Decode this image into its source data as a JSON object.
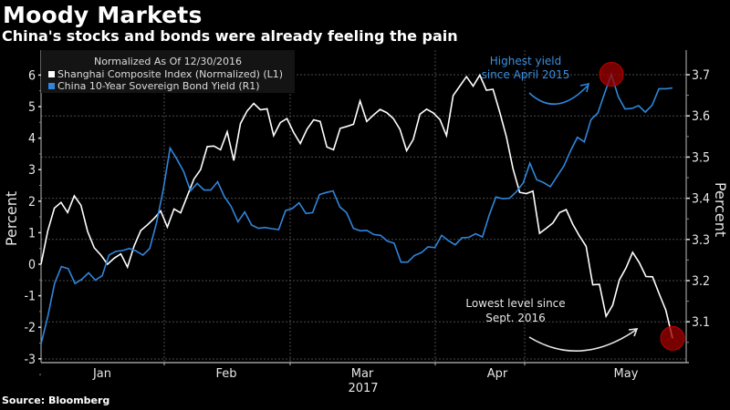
{
  "header": {
    "title": "Moody Markets",
    "subtitle": "China's stocks and bonds were already feeling the pain"
  },
  "footer": {
    "source": "Source: Bloomberg"
  },
  "colors": {
    "background": "#000000",
    "shanghai": "#ffffff",
    "bond": "#2f86dd",
    "highlight": "#8b0000",
    "grid": "#555555"
  },
  "chart_data": {
    "type": "line",
    "title": "Moody Markets",
    "subtitle": "China's stocks and bonds were already feeling the pain",
    "legend": {
      "placement": "top-left",
      "header": "Normalized As Of 12/30/2016",
      "entries": [
        "Shanghai Composite Index (Normalized) (L1)",
        "China 10-Year Sovereign Bond Yield (R1)"
      ]
    },
    "xlabel": "2017",
    "x_ticks": [
      "Jan",
      "Feb",
      "Mar",
      "Apr",
      "May"
    ],
    "x_year": "2017",
    "y_left": {
      "label": "Percent",
      "ticks": [
        "6",
        "5",
        "4",
        "3",
        "2",
        "1",
        "0",
        "-1",
        "-2",
        "-3"
      ],
      "tick_values": [
        6,
        5,
        4,
        3,
        2,
        1,
        0,
        -1,
        -2,
        -3
      ],
      "range": [
        -3.1,
        6.3
      ]
    },
    "y_right": {
      "label": "Percent",
      "ticks": [
        "3.7",
        "3.6",
        "3.5",
        "3.4",
        "3.3",
        "3.2",
        "3.1"
      ],
      "tick_values": [
        3.7,
        3.6,
        3.5,
        3.4,
        3.3,
        3.2,
        3.1
      ],
      "range": [
        3.03,
        3.74
      ]
    },
    "grid": true,
    "series": [
      {
        "name": "Shanghai Composite Index (Normalized) (L1)",
        "axis": "left",
        "color": "#ffffff",
        "values": [
          0.0,
          1.05,
          1.78,
          1.96,
          1.64,
          2.17,
          1.87,
          1.04,
          0.52,
          0.29,
          0.0,
          0.19,
          0.33,
          -0.09,
          0.58,
          1.07,
          1.25,
          1.45,
          1.69,
          1.18,
          1.75,
          1.63,
          2.17,
          2.7,
          3.0,
          3.73,
          3.75,
          3.63,
          4.2,
          3.29,
          4.46,
          4.86,
          5.1,
          4.9,
          4.93,
          4.08,
          4.49,
          4.62,
          4.18,
          3.83,
          4.28,
          4.58,
          4.53,
          3.72,
          3.63,
          4.31,
          4.37,
          4.44,
          5.18,
          4.53,
          4.73,
          4.91,
          4.81,
          4.62,
          4.28,
          3.6,
          3.96,
          4.76,
          4.92,
          4.8,
          4.59,
          4.08,
          5.35,
          5.65,
          5.95,
          5.65,
          6.0,
          5.52,
          5.55,
          4.83,
          4.05,
          3.03,
          2.28,
          2.24,
          2.32,
          0.98,
          1.14,
          1.31,
          1.64,
          1.73,
          1.27,
          0.9,
          0.57,
          -0.65,
          -0.64,
          -1.65,
          -1.3,
          -0.5,
          -0.12,
          0.38,
          0.05,
          -0.39,
          -0.4,
          -0.94,
          -1.46,
          -2.35
        ]
      },
      {
        "name": "China 10-Year Sovereign Bond Yield (R1)",
        "axis": "right",
        "color": "#2f86dd",
        "values": [
          3.046,
          3.113,
          3.194,
          3.234,
          3.229,
          3.193,
          3.203,
          3.219,
          3.201,
          3.212,
          3.262,
          3.271,
          3.273,
          3.278,
          3.272,
          3.262,
          3.278,
          3.34,
          3.421,
          3.522,
          3.495,
          3.465,
          3.418,
          3.436,
          3.42,
          3.42,
          3.44,
          3.404,
          3.38,
          3.343,
          3.367,
          3.335,
          3.327,
          3.329,
          3.326,
          3.324,
          3.37,
          3.375,
          3.389,
          3.363,
          3.365,
          3.409,
          3.414,
          3.418,
          3.379,
          3.365,
          3.327,
          3.321,
          3.322,
          3.312,
          3.31,
          3.296,
          3.291,
          3.245,
          3.245,
          3.261,
          3.268,
          3.282,
          3.28,
          3.31,
          3.297,
          3.287,
          3.304,
          3.305,
          3.314,
          3.306,
          3.359,
          3.403,
          3.399,
          3.4,
          3.416,
          3.437,
          3.485,
          3.445,
          3.438,
          3.428,
          3.453,
          3.478,
          3.516,
          3.548,
          3.537,
          3.591,
          3.607,
          3.655,
          3.701,
          3.647,
          3.617,
          3.618,
          3.625,
          3.609,
          3.626,
          3.666,
          3.666,
          3.668
        ]
      }
    ],
    "annotations": [
      {
        "text_lines": [
          "Highest yield",
          "since April 2015"
        ],
        "series": "China 10-Year Sovereign Bond Yield (R1)",
        "point": "max",
        "color": "#2f86dd"
      },
      {
        "text_lines": [
          "Lowest level since",
          "Sept. 2016"
        ],
        "series": "Shanghai Composite Index (Normalized) (L1)",
        "point": "last",
        "color": "#e6e6e6"
      }
    ]
  }
}
